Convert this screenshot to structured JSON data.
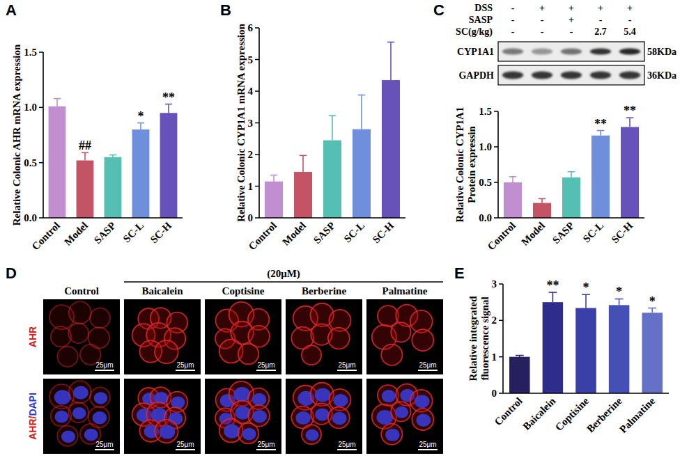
{
  "chart_data": [
    {
      "panel_label": "A",
      "type": "bar",
      "y_label": "Relative Colonic AHR mRNA expression",
      "categories": [
        "Control",
        "Model",
        "SASP",
        "SC-L",
        "SC-H"
      ],
      "values": [
        1.01,
        0.52,
        0.55,
        0.8,
        0.95
      ],
      "errors": [
        0.07,
        0.07,
        0.02,
        0.06,
        0.08
      ],
      "significance": [
        null,
        "##",
        null,
        "*",
        "**"
      ],
      "colors": [
        "#c18fd0",
        "#c25466",
        "#55bfb4",
        "#6f8fdc",
        "#6652b8"
      ],
      "ylim": [
        0,
        1.5
      ],
      "yticks": [
        {
          "value": 0,
          "label": "0.0"
        },
        {
          "value": 0.5,
          "label": "0.5"
        },
        {
          "value": 1,
          "label": "1.0"
        },
        {
          "value": 1.5,
          "label": "1.5"
        }
      ],
      "grid": false
    },
    {
      "panel_label": "B",
      "type": "bar",
      "y_label": "Relative Colonic CYP1A1 mRNA expression",
      "categories": [
        "Control",
        "Model",
        "SASP",
        "SC-L",
        "SC-H"
      ],
      "values": [
        1.15,
        1.45,
        2.45,
        2.8,
        4.35
      ],
      "errors": [
        0.2,
        0.52,
        0.78,
        1.08,
        1.2
      ],
      "colors": [
        "#c18fd0",
        "#c25466",
        "#55bfb4",
        "#6f8fdc",
        "#6652b8"
      ],
      "ylim": [
        0,
        6
      ],
      "yticks": [
        0,
        1,
        2,
        3,
        4,
        5,
        6
      ],
      "grid": false
    },
    {
      "panel_label": "C",
      "type": "bar",
      "y_label": "Relative Colonic CYP1A1 Protein expressin",
      "categories": [
        "Control",
        "Model",
        "SASP",
        "SC-L",
        "SC-H"
      ],
      "values": [
        0.5,
        0.21,
        0.57,
        1.16,
        1.28
      ],
      "errors": [
        0.08,
        0.06,
        0.08,
        0.07,
        0.13
      ],
      "significance": [
        null,
        null,
        null,
        "**",
        "**"
      ],
      "colors": [
        "#c18fd0",
        "#c25466",
        "#55bfb4",
        "#6f8fdc",
        "#6652b8"
      ],
      "ylim": [
        0,
        1.5
      ],
      "yticks": [
        {
          "value": 0,
          "label": "0.0"
        },
        {
          "value": 0.5,
          "label": "0.5"
        },
        {
          "value": 1,
          "label": "1.0"
        },
        {
          "value": 1.5,
          "label": "1.5"
        }
      ],
      "grid": false,
      "blot": {
        "conditions": [
          {
            "label": "DSS",
            "values": [
              "-",
              "+",
              "+",
              "+",
              "+"
            ]
          },
          {
            "label": "SASP",
            "values": [
              "-",
              "-",
              "+",
              "-",
              "-"
            ]
          },
          {
            "label": "SC(g/kg)",
            "values": [
              "-",
              "-",
              "-",
              "2.7",
              "5.4"
            ]
          }
        ],
        "bands": [
          {
            "label": "CYP1A1",
            "size": "58KDa"
          },
          {
            "label": "GAPDH",
            "size": "36KDa"
          }
        ]
      }
    },
    {
      "panel_label": "E",
      "type": "bar",
      "y_label": "Relative integrated fluorescence signal",
      "categories": [
        "Control",
        "Baicalein",
        "Coptisine",
        "Berberine",
        "Palmatine"
      ],
      "values": [
        1.0,
        2.5,
        2.34,
        2.42,
        2.21
      ],
      "errors": [
        0.04,
        0.27,
        0.37,
        0.17,
        0.13
      ],
      "significance": [
        null,
        "**",
        "*",
        "*",
        "*"
      ],
      "colors": [
        "#26205e",
        "#2f2d8c",
        "#3b3fa8",
        "#4550b5",
        "#6570c8"
      ],
      "ylim": [
        0,
        3
      ],
      "yticks": [
        0,
        1,
        2,
        3
      ],
      "grid": false
    }
  ],
  "microscopy": {
    "panel_label": "D",
    "treatment_label": "(20μM)",
    "columns": [
      "Control",
      "Baicalein",
      "Coptisine",
      "Berberine",
      "Palmatine"
    ],
    "rows": [
      "AHR",
      "AHR/DAPI"
    ],
    "scale_bar": "25μm"
  }
}
